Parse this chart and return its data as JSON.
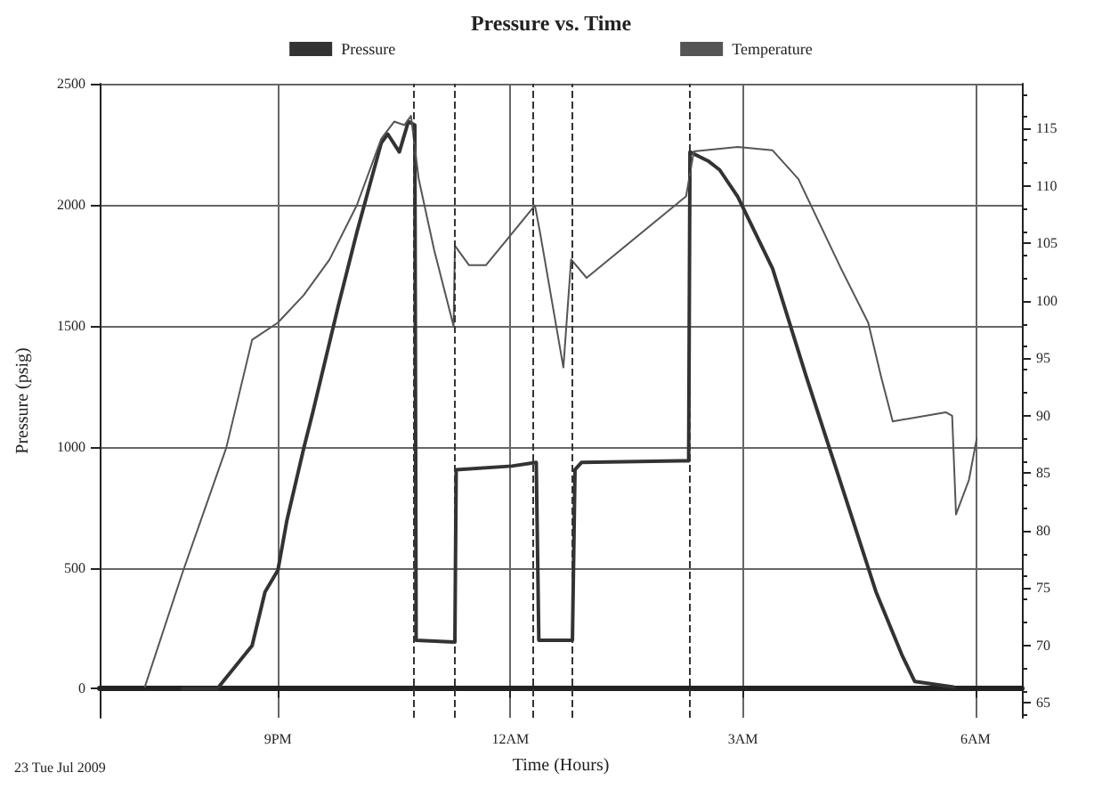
{
  "chart_data": {
    "type": "line",
    "title": "Pressure vs. Time",
    "xlabel": "Time (Hours)",
    "ylabel": "Pressure (psig)",
    "annotations": [
      "23 Tue Jul 2009"
    ],
    "xlim": [
      "2009-07-23T18:42",
      "2009-07-24T06:36"
    ],
    "xticks": [
      {
        "value": "2009-07-23T21:00",
        "label": "9PM"
      },
      {
        "value": "2009-07-24T00:00",
        "label": "12AM"
      },
      {
        "value": "2009-07-24T03:00",
        "label": "3AM"
      },
      {
        "value": "2009-07-24T06:00",
        "label": "6AM"
      }
    ],
    "ylim": [
      -120,
      2500
    ],
    "yticks": [
      0,
      500,
      1000,
      1500,
      2000,
      2500
    ],
    "y2lim": [
      63.7,
      118.9
    ],
    "y2ticks": [
      65,
      70,
      75,
      80,
      85,
      90,
      95,
      100,
      105,
      110,
      115
    ],
    "grid": true,
    "legend": "top",
    "marker": "none",
    "ref_lines": [
      {
        "axis": "x",
        "value": "2009-07-23T22:45",
        "line_style": "dashed"
      },
      {
        "axis": "x",
        "value": "2009-07-23T23:17",
        "line_style": "dashed"
      },
      {
        "axis": "x",
        "value": "2009-07-24T00:17",
        "line_style": "dashed"
      },
      {
        "axis": "x",
        "value": "2009-07-24T00:48",
        "line_style": "dashed"
      },
      {
        "axis": "x",
        "value": "2009-07-24T02:18",
        "line_style": "dashed"
      }
    ],
    "series": [
      {
        "name": "Pressure",
        "color": "#333333",
        "x": [
          "2009-07-23T19:46",
          "2009-07-23T20:13",
          "2009-07-23T20:40",
          "2009-07-23T20:50",
          "2009-07-23T21:00",
          "2009-07-23T21:07",
          "2009-07-23T21:20",
          "2009-07-23T21:27",
          "2009-07-23T21:47",
          "2009-07-23T22:01",
          "2009-07-23T22:20",
          "2009-07-23T22:25",
          "2009-07-23T22:34",
          "2009-07-23T22:41",
          "2009-07-23T22:46",
          "2009-07-23T22:47",
          "2009-07-23T23:17",
          "2009-07-23T23:18",
          "2009-07-24T00:01",
          "2009-07-24T00:20",
          "2009-07-24T00:22",
          "2009-07-24T00:48",
          "2009-07-24T00:50",
          "2009-07-24T00:55",
          "2009-07-24T02:18",
          "2009-07-24T02:19",
          "2009-07-24T02:33",
          "2009-07-24T02:42",
          "2009-07-24T02:56",
          "2009-07-24T03:23",
          "2009-07-24T03:49",
          "2009-07-24T04:16",
          "2009-07-24T04:43",
          "2009-07-24T05:03",
          "2009-07-24T05:13",
          "2009-07-24T05:43"
        ],
        "values": [
          0,
          0,
          178,
          400,
          490,
          697,
          994,
          1142,
          1588,
          1884,
          2255,
          2292,
          2218,
          2344,
          2329,
          200,
          193,
          905,
          920,
          935,
          200,
          200,
          905,
          935,
          942,
          2218,
          2181,
          2144,
          2033,
          1736,
          1291,
          846,
          401,
          141,
          30,
          7
        ]
      },
      {
        "name": "Temperature",
        "color": "#555555",
        "axis": "y2",
        "x": [
          "2009-07-23T19:17",
          "2009-07-23T19:46",
          "2009-07-23T20:20",
          "2009-07-23T20:40",
          "2009-07-23T21:00",
          "2009-07-23T21:20",
          "2009-07-23T21:40",
          "2009-07-23T22:01",
          "2009-07-23T22:20",
          "2009-07-23T22:30",
          "2009-07-23T22:38",
          "2009-07-23T22:43",
          "2009-07-23T22:49",
          "2009-07-23T23:01",
          "2009-07-23T23:16",
          "2009-07-23T23:17",
          "2009-07-23T23:28",
          "2009-07-23T23:41",
          "2009-07-24T00:19",
          "2009-07-24T00:23",
          "2009-07-24T00:41",
          "2009-07-24T00:47",
          "2009-07-24T00:59",
          "2009-07-24T02:16",
          "2009-07-24T02:22",
          "2009-07-24T02:56",
          "2009-07-24T03:23",
          "2009-07-24T03:43",
          "2009-07-24T04:16",
          "2009-07-24T04:37",
          "2009-07-24T04:47",
          "2009-07-24T04:56",
          "2009-07-24T05:37",
          "2009-07-24T05:42",
          "2009-07-24T05:45",
          "2009-07-24T05:55",
          "2009-07-24T06:01"
        ],
        "values": [
          66.4,
          76.3,
          87.2,
          96.6,
          98.1,
          100.5,
          103.6,
          108.3,
          114.1,
          115.6,
          115.3,
          116.1,
          110.6,
          104.4,
          97.8,
          104.8,
          103.1,
          103.1,
          108.3,
          105.9,
          94.2,
          103.6,
          102.0,
          109.1,
          113.0,
          113.4,
          113.1,
          110.6,
          102.8,
          98.1,
          93.4,
          89.5,
          90.3,
          90.0,
          81.4,
          84.4,
          88.0
        ]
      }
    ]
  }
}
